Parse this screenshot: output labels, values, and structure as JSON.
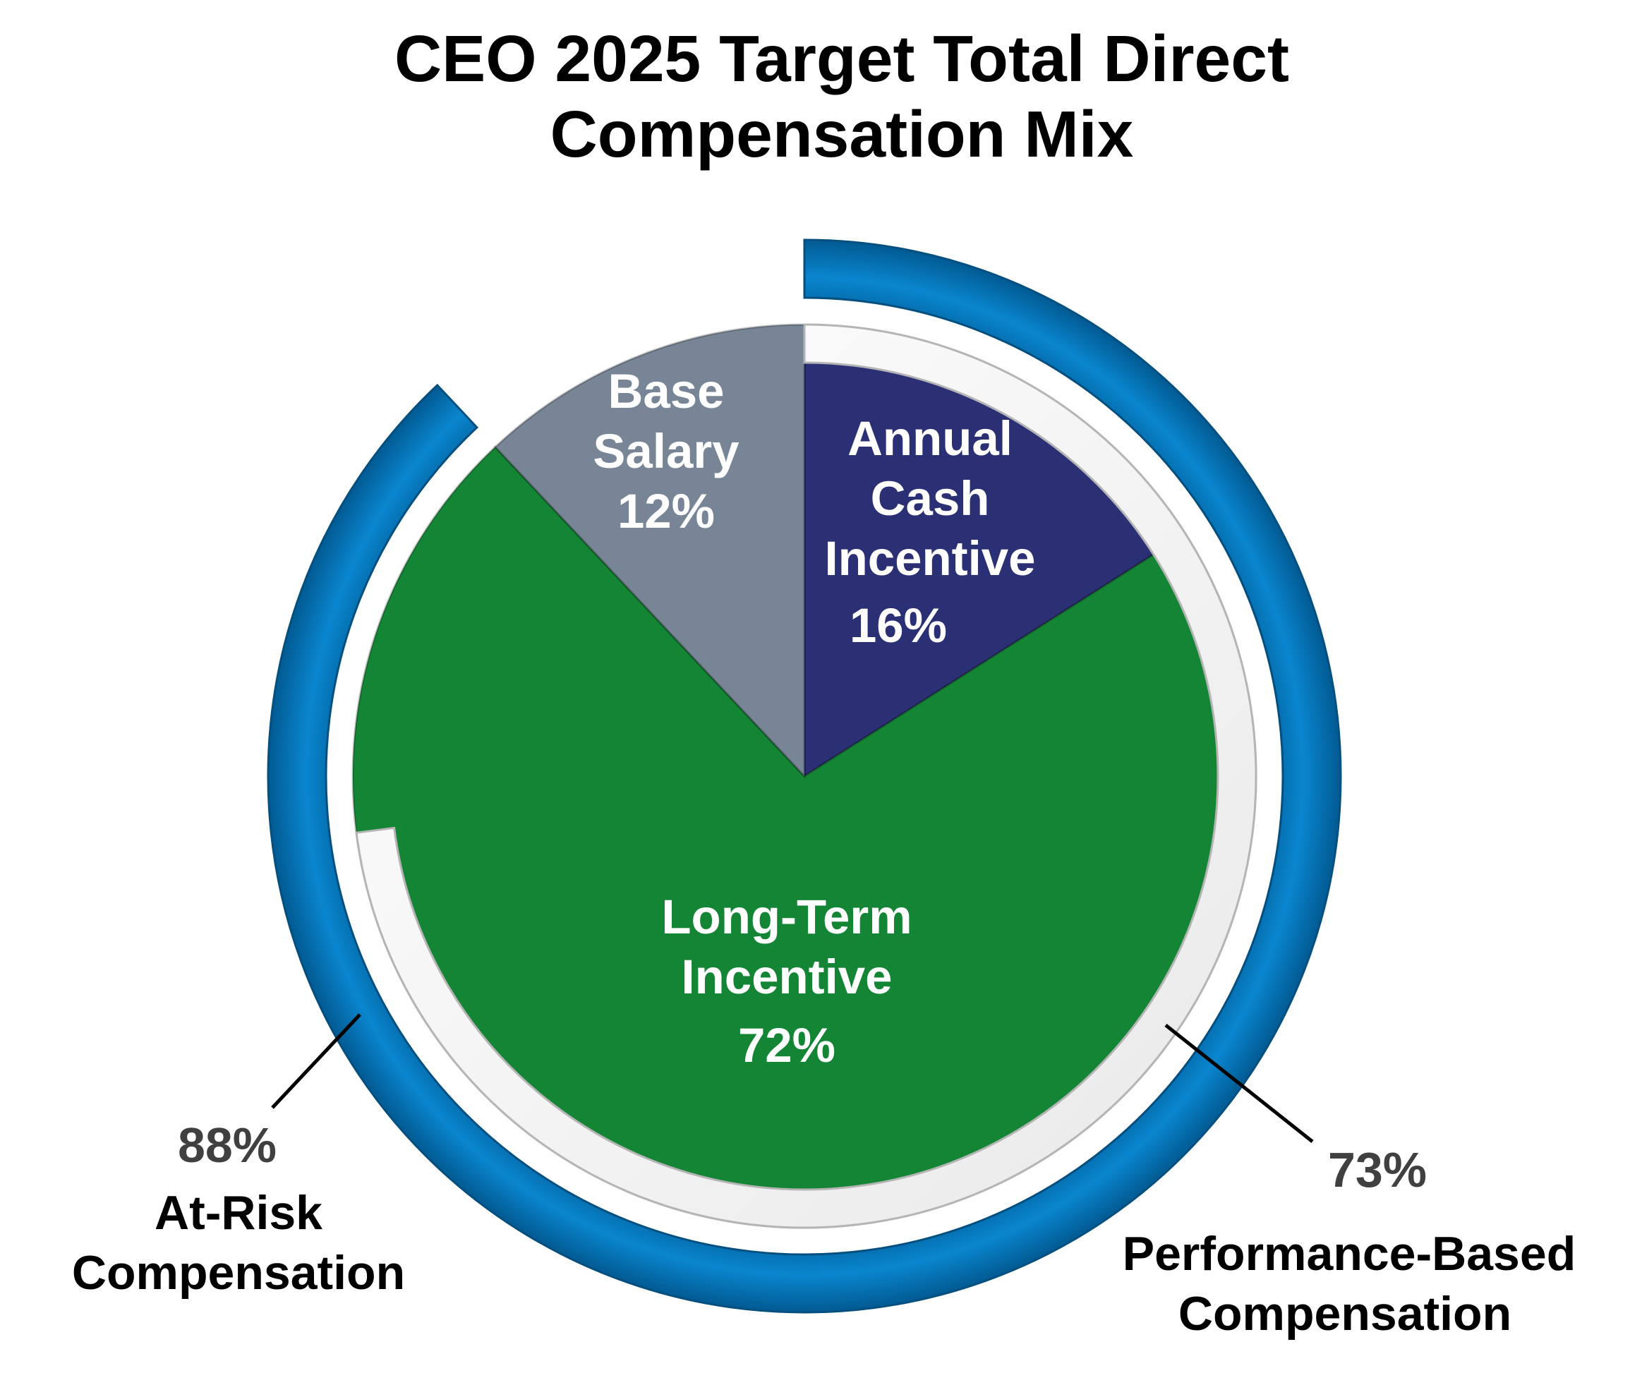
{
  "chart_data": {
    "type": "pie",
    "title_lines": [
      "CEO 2025 Target Total Direct",
      "Compensation Mix"
    ],
    "slices": [
      {
        "name": "Annual Cash Incentive",
        "label_lines": [
          "Annual",
          "Cash",
          "Incentive"
        ],
        "value": 16,
        "value_label": "16%",
        "color": "#2B3075"
      },
      {
        "name": "Long-Term Incentive",
        "label_lines": [
          "Long-Term",
          "Incentive"
        ],
        "value": 72,
        "value_label": "72%",
        "color": "#138535"
      },
      {
        "name": "Base Salary",
        "label_lines": [
          "Base",
          "Salary"
        ],
        "value": 12,
        "value_label": "12%",
        "color": "#778596"
      }
    ],
    "rings": [
      {
        "name": "At-Risk Compensation",
        "value": 88,
        "value_label": "88%",
        "label_lines": [
          "At-Risk",
          "Compensation"
        ],
        "color": "#0377BD"
      },
      {
        "name": "Performance-Based Compensation",
        "value": 73,
        "value_label": "73%",
        "label_lines": [
          "Performance-Based",
          "Compensation"
        ],
        "color": "#F2F2F2"
      }
    ]
  }
}
